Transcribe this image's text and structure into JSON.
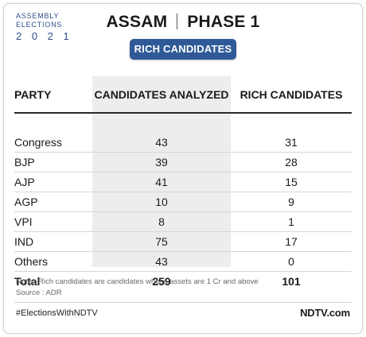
{
  "brand": {
    "line1": "ASSEMBLY",
    "line2": "ELECTIONS",
    "year": "2 0 2 1"
  },
  "headline": {
    "left": "ASSAM",
    "right": "PHASE 1"
  },
  "pill_label": "RICH CANDIDATES",
  "chart_data": {
    "type": "table",
    "columns": [
      "PARTY",
      "CANDIDATES ANALYZED",
      "RICH CANDIDATES"
    ],
    "rows": [
      {
        "party": "Congress",
        "analyzed": 43,
        "rich": 31
      },
      {
        "party": "BJP",
        "analyzed": 39,
        "rich": 28
      },
      {
        "party": "AJP",
        "analyzed": 41,
        "rich": 15
      },
      {
        "party": "AGP",
        "analyzed": 10,
        "rich": 9
      },
      {
        "party": "VPI",
        "analyzed": 8,
        "rich": 1
      },
      {
        "party": "IND",
        "analyzed": 75,
        "rich": 17
      },
      {
        "party": "Others",
        "analyzed": 43,
        "rich": 0
      }
    ],
    "total": {
      "label": "Total",
      "analyzed": 259,
      "rich": 101
    }
  },
  "footer": {
    "note": "Note : Rich candidates are candidates whose assets are 1 Cr and above",
    "source": "Source : ADR",
    "hashtag": "#ElectionsWithNDTV",
    "logo": "NDTV.com"
  },
  "colors": {
    "accent": "#2f5a97",
    "brand": "#2c4f8a",
    "highlight": "#ededed"
  }
}
